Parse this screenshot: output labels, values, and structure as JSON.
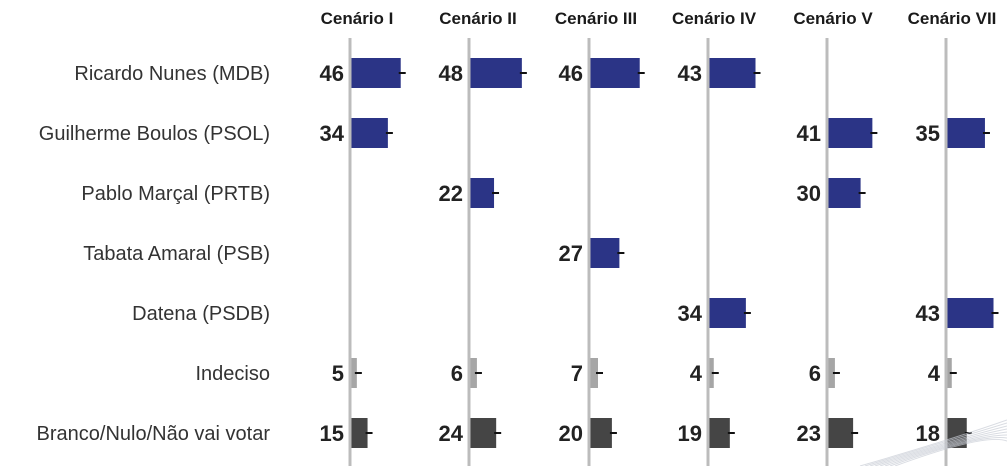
{
  "chart_data": {
    "type": "bar",
    "columns": [
      "Cenário I",
      "Cenário II",
      "Cenário III",
      "Cenário IV",
      "Cenário V",
      "Cenário VII"
    ],
    "rows": [
      {
        "label": "Ricardo Nunes (MDB)",
        "kind": "candidate",
        "values": [
          46,
          48,
          46,
          43,
          null,
          null
        ]
      },
      {
        "label": "Guilherme Boulos (PSOL)",
        "kind": "candidate",
        "values": [
          34,
          null,
          null,
          null,
          41,
          35
        ]
      },
      {
        "label": "Pablo Marçal (PRTB)",
        "kind": "candidate",
        "values": [
          null,
          22,
          null,
          null,
          30,
          null
        ]
      },
      {
        "label": "Tabata Amaral (PSB)",
        "kind": "candidate",
        "values": [
          null,
          null,
          27,
          null,
          null,
          null
        ]
      },
      {
        "label": "Datena (PSDB)",
        "kind": "candidate",
        "values": [
          null,
          null,
          null,
          34,
          null,
          43
        ]
      },
      {
        "label": "Indeciso",
        "kind": "undecided",
        "values": [
          5,
          6,
          7,
          4,
          6,
          4
        ]
      },
      {
        "label": "Branco/Nulo/Não vai votar",
        "kind": "blank",
        "values": [
          15,
          24,
          20,
          19,
          23,
          18
        ]
      }
    ],
    "colors": {
      "candidate": "#2b3486",
      "undecided": "#a6a6a6",
      "blank": "#454545",
      "axis": "#bcbcbc"
    },
    "error_bars": true,
    "grid": false
  }
}
